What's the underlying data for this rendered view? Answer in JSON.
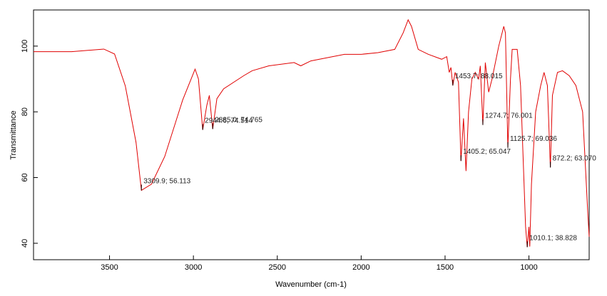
{
  "chart_data": {
    "type": "line",
    "x_label": "Wavenumber (cm-1)",
    "y_label": "Transmittance",
    "xlim": [
      3953,
      641
    ],
    "ylim": [
      35,
      111
    ],
    "xticks": [
      3500,
      3000,
      2500,
      2000,
      1500,
      1000
    ],
    "yticks": [
      40,
      60,
      80,
      100
    ],
    "series": [
      {
        "color": "#e00000",
        "x": [
          3953,
          3726,
          3534,
          3470,
          3406,
          3342,
          3309.9,
          3250,
          3171,
          3064,
          2990,
          2970,
          2944.6,
          2920,
          2905,
          2885.0,
          2860,
          2820,
          2700,
          2650,
          2550,
          2400,
          2360,
          2300,
          2100,
          2000,
          1900,
          1800,
          1750,
          1720,
          1700,
          1660,
          1600,
          1520,
          1490,
          1475,
          1465,
          1453.7,
          1440,
          1420,
          1405.2,
          1390,
          1375,
          1360,
          1340,
          1320,
          1300,
          1290,
          1274.7,
          1260,
          1240,
          1220,
          1180,
          1150,
          1140,
          1125.7,
          1110,
          1100,
          1070,
          1050,
          1020,
          1010.1,
          1000,
          995,
          985,
          960,
          930,
          910,
          890,
          872.2,
          860,
          830,
          800,
          760,
          720,
          680,
          650,
          641
        ],
        "values": [
          98.3,
          98.3,
          99.1,
          97.6,
          87.9,
          70.7,
          56.113,
          58,
          66.4,
          83.6,
          93,
          90,
          74.514,
          82,
          85,
          74.765,
          84,
          87,
          91,
          92.5,
          94,
          95,
          94,
          95.5,
          97.5,
          97.5,
          98,
          99,
          104,
          108,
          106,
          99,
          97.5,
          96,
          96.8,
          92,
          93.5,
          88.015,
          92,
          89,
          65.047,
          78,
          62,
          80,
          90,
          92,
          90,
          94,
          76.001,
          95,
          86,
          90,
          100,
          106,
          104,
          69.036,
          90,
          99,
          99,
          88,
          45,
          38.828,
          45,
          39,
          58,
          80,
          88,
          92,
          88,
          63.07,
          85,
          92,
          92.5,
          91,
          88,
          80,
          50,
          42
        ]
      }
    ],
    "annotations": [
      {
        "x": 3309.9,
        "y": 56.113,
        "label": "3309.9; 56.113"
      },
      {
        "x": 2944.6,
        "y": 74.514,
        "label": "2944.6; 74.514"
      },
      {
        "x": 2885.0,
        "y": 74.765,
        "label": "2885.0; 74.765"
      },
      {
        "x": 1453.7,
        "y": 88.015,
        "label": "1453.7; 88.015"
      },
      {
        "x": 1405.2,
        "y": 65.047,
        "label": "1405.2; 65.047"
      },
      {
        "x": 1274.7,
        "y": 76.001,
        "label": "1274.7; 76.001"
      },
      {
        "x": 1125.7,
        "y": 69.036,
        "label": "1125.7; 69.036"
      },
      {
        "x": 872.2,
        "y": 63.07,
        "label": "872.2; 63.070"
      },
      {
        "x": 1010.1,
        "y": 38.828,
        "label": "1010.1; 38.828"
      }
    ]
  }
}
